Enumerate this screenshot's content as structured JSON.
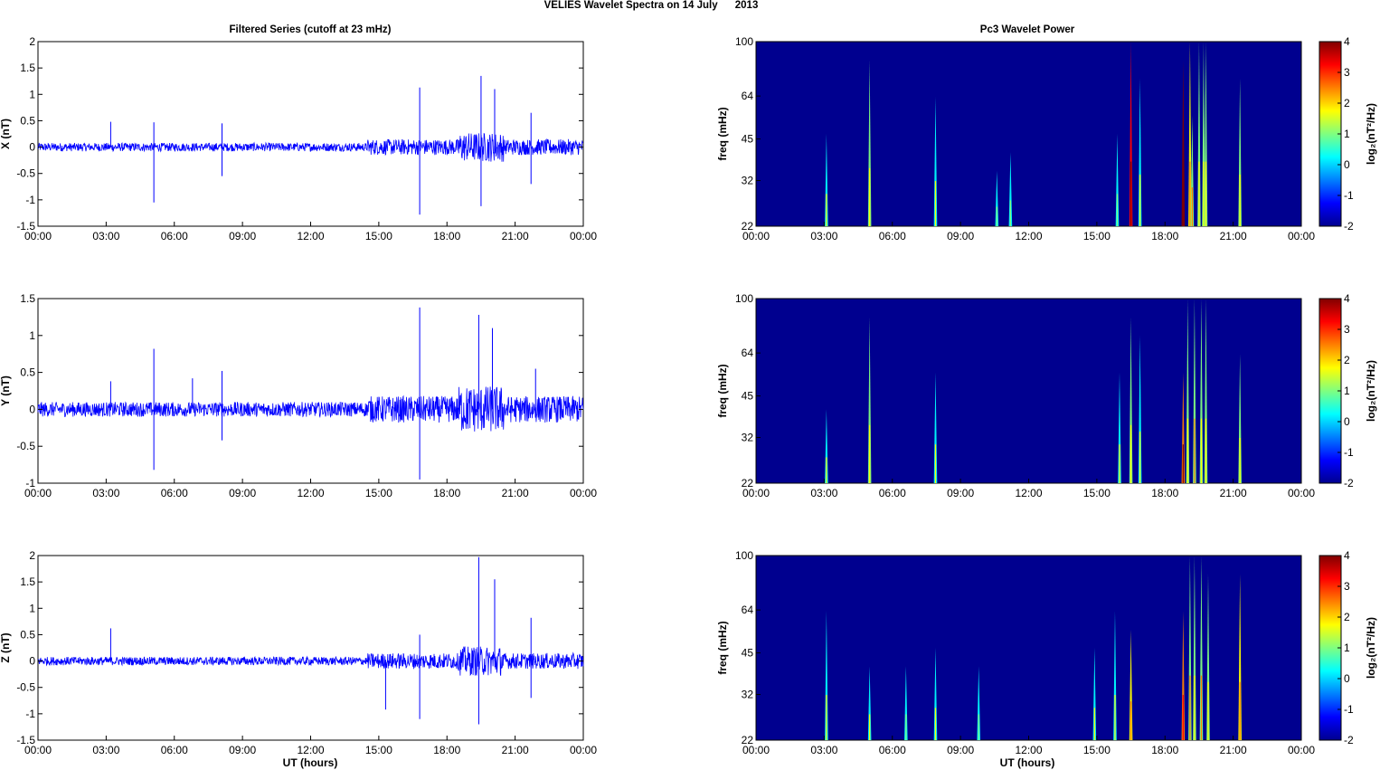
{
  "title": "VELIES Wavelet Spectra on 14 July      2013",
  "left_title": "Filtered Series (cutoff at 23 mHz)",
  "right_title": "Pc3 Wavelet Power",
  "x_ticks": [
    "00:00",
    "03:00",
    "06:00",
    "09:00",
    "12:00",
    "15:00",
    "18:00",
    "21:00",
    "00:00"
  ],
  "xlabel": "UT (hours)",
  "freq_label": "freq (mHz)",
  "colorbar_label": "log₂(nT²/Hz)",
  "colorbar_ticks": [
    "4",
    "3",
    "2",
    "1",
    "0",
    "-1",
    "-2"
  ],
  "colors": {
    "trace": "#0000ff",
    "background": "#00008f"
  },
  "chart_data": [
    {
      "type": "line",
      "component": "X",
      "ylabel": "X (nT)",
      "ylim": [
        -1.5,
        2
      ],
      "yticks": [
        "2",
        "1.5",
        "1",
        "0.5",
        "0",
        "-0.5",
        "-1",
        "-1.5"
      ],
      "xlim_hours": [
        0,
        24
      ],
      "baseline_noise_nT": 0.08,
      "noise_segments_hours": [
        [
          14.5,
          24,
          0.15
        ],
        [
          18.5,
          20.5,
          0.28
        ]
      ],
      "spikes": [
        [
          3.2,
          0.48
        ],
        [
          5.1,
          -1.05
        ],
        [
          5.1,
          0.47
        ],
        [
          8.1,
          -0.55
        ],
        [
          8.1,
          0.45
        ],
        [
          16.8,
          1.13
        ],
        [
          16.8,
          -1.28
        ],
        [
          19.5,
          -1.12
        ],
        [
          19.5,
          1.35
        ],
        [
          20.1,
          1.1
        ],
        [
          21.7,
          0.65
        ],
        [
          21.7,
          -0.7
        ]
      ]
    },
    {
      "type": "line",
      "component": "Y",
      "ylabel": "Y (nT)",
      "ylim": [
        -1,
        1.5
      ],
      "yticks": [
        "1.5",
        "1",
        "0.5",
        "0",
        "-0.5",
        "-1"
      ],
      "xlim_hours": [
        0,
        24
      ],
      "baseline_noise_nT": 0.1,
      "noise_segments_hours": [
        [
          14.5,
          24,
          0.18
        ],
        [
          18.5,
          20.5,
          0.32
        ]
      ],
      "spikes": [
        [
          3.2,
          0.38
        ],
        [
          5.1,
          0.82
        ],
        [
          5.1,
          -0.82
        ],
        [
          6.8,
          0.42
        ],
        [
          8.1,
          0.52
        ],
        [
          8.1,
          -0.42
        ],
        [
          16.8,
          1.38
        ],
        [
          16.8,
          -0.95
        ],
        [
          19.4,
          1.28
        ],
        [
          20.0,
          1.1
        ],
        [
          21.9,
          0.55
        ]
      ]
    },
    {
      "type": "line",
      "component": "Z",
      "ylabel": "Z (nT)",
      "ylim": [
        -1.5,
        2
      ],
      "yticks": [
        "2",
        "1.5",
        "1",
        "0.5",
        "0",
        "-0.5",
        "-1",
        "-1.5"
      ],
      "xlim_hours": [
        0,
        24
      ],
      "baseline_noise_nT": 0.08,
      "noise_segments_hours": [
        [
          14.5,
          24,
          0.15
        ],
        [
          18.5,
          20.5,
          0.28
        ]
      ],
      "spikes": [
        [
          3.2,
          0.62
        ],
        [
          15.3,
          -0.92
        ],
        [
          16.8,
          0.5
        ],
        [
          16.8,
          -1.1
        ],
        [
          19.4,
          1.97
        ],
        [
          19.4,
          -1.2
        ],
        [
          20.1,
          1.55
        ],
        [
          21.7,
          0.82
        ],
        [
          21.7,
          -0.7
        ]
      ]
    },
    {
      "type": "heatmap",
      "component": "X",
      "ylabel": "freq (mHz)",
      "yticks": [
        "100",
        "64",
        "45",
        "32",
        "22"
      ],
      "clim": [
        -2,
        4
      ],
      "xlim_hours": [
        0,
        24
      ],
      "streaks": [
        [
          3.1,
          0.5,
          0.4
        ],
        [
          5.0,
          0.9,
          0.8
        ],
        [
          7.9,
          0.7,
          0.5
        ],
        [
          10.6,
          0.3,
          0.3
        ],
        [
          11.2,
          0.4,
          0.3
        ],
        [
          15.9,
          0.5,
          0.3
        ],
        [
          16.5,
          1.0,
          3.5
        ],
        [
          16.9,
          0.8,
          0.4
        ],
        [
          18.8,
          0.9,
          3.8
        ],
        [
          19.1,
          1.0,
          1.6
        ],
        [
          19.2,
          0.6,
          1.3
        ],
        [
          19.5,
          1.0,
          0.9
        ],
        [
          19.7,
          1.0,
          0.8
        ],
        [
          19.8,
          1.0,
          0.8
        ],
        [
          21.3,
          0.8,
          0.9
        ]
      ]
    },
    {
      "type": "heatmap",
      "component": "Y",
      "ylabel": "freq (mHz)",
      "yticks": [
        "100",
        "64",
        "45",
        "32",
        "22"
      ],
      "clim": [
        -2,
        4
      ],
      "xlim_hours": [
        0,
        24
      ],
      "streaks": [
        [
          3.1,
          0.4,
          0.4
        ],
        [
          5.0,
          0.9,
          0.8
        ],
        [
          7.9,
          0.6,
          0.5
        ],
        [
          16.0,
          0.6,
          0.4
        ],
        [
          16.5,
          0.9,
          0.9
        ],
        [
          16.9,
          0.8,
          0.4
        ],
        [
          18.8,
          0.6,
          2.8
        ],
        [
          19.0,
          1.0,
          1.0
        ],
        [
          19.3,
          1.0,
          1.2
        ],
        [
          19.6,
          1.0,
          0.8
        ],
        [
          19.8,
          1.0,
          0.7
        ],
        [
          21.3,
          0.7,
          0.8
        ]
      ]
    },
    {
      "type": "heatmap",
      "component": "Z",
      "ylabel": "freq (mHz)",
      "yticks": [
        "100",
        "64",
        "45",
        "32",
        "22"
      ],
      "clim": [
        -2,
        4
      ],
      "xlim_hours": [
        0,
        24
      ],
      "streaks": [
        [
          3.1,
          0.7,
          0.5
        ],
        [
          5.0,
          0.4,
          0.4
        ],
        [
          6.6,
          0.4,
          0.3
        ],
        [
          7.9,
          0.5,
          0.4
        ],
        [
          9.8,
          0.4,
          0.3
        ],
        [
          14.9,
          0.5,
          0.4
        ],
        [
          15.8,
          0.7,
          0.4
        ],
        [
          16.5,
          0.6,
          1.4
        ],
        [
          18.8,
          0.7,
          2.2
        ],
        [
          19.1,
          1.0,
          1.3
        ],
        [
          19.3,
          1.0,
          0.9
        ],
        [
          19.6,
          1.0,
          1.2
        ],
        [
          19.9,
          0.9,
          0.9
        ],
        [
          21.3,
          0.9,
          1.6
        ]
      ]
    }
  ]
}
